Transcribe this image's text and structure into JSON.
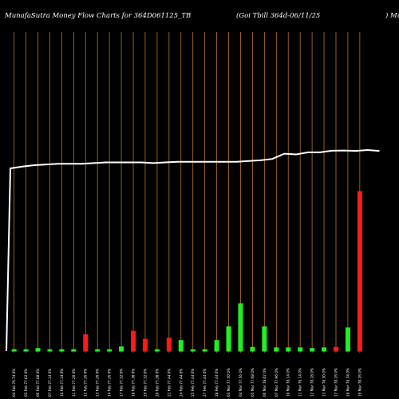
{
  "header": {
    "left": "MunafaSutra  Money Flow  Charts for 364D061125_TB",
    "middle": "(Goi   Tbill 364d-06/11/25",
    "right": ") MunafaSutra.com"
  },
  "colors": {
    "background": "#000000",
    "gridline": "#b8732a",
    "price_line": "#ffffff",
    "up_bar": "#22ee22",
    "down_bar": "#ff1a1a"
  },
  "chart_data": {
    "type": "bar",
    "title": "MunafaSutra  Money Flow  Charts for 364D061125_TB",
    "grid": "vertical",
    "categories": [
      "04 Feb 76.74 0%",
      "05 Feb 77.02 0%",
      "06 Feb 77.08 0%",
      "07 Feb 77.14 0%",
      "10 Feb 77.14 0%",
      "11 Feb 77.20 0%",
      "12 Feb 77.26 0%",
      "13 Feb 77.26 0%",
      "14 Feb 77.26 0%",
      "17 Feb 77.32 0%",
      "18 Feb 77.38 0%",
      "19 Feb 77.32 0%",
      "20 Feb 77.38 0%",
      "21 Feb 77.44 0%",
      "24 Feb 77.44 0%",
      "25 Feb 77.44 0%",
      "27 Feb 77.44 0%",
      "28 Feb 77.44 0%",
      "03 Mar 77.50 0%",
      "04 Mar 77.56 0%",
      "05 Mar 77.68 0%",
      "06 Mar 78.02 0%",
      "07 Mar 77.96 0%",
      "10 Mar 78.14 0%",
      "11 Mar 78.14 0%",
      "12 Mar 78.28 0%",
      "13 Mar 78.30 0%",
      "17 Mar 78.26 0%",
      "18 Mar 78.34 0%",
      "19 Mar 78.26 0%"
    ],
    "price_line": [
      44.0,
      76.74,
      76.9,
      77.02,
      77.08,
      77.14,
      77.14,
      77.14,
      77.2,
      77.26,
      77.26,
      77.26,
      77.26,
      77.2,
      77.26,
      77.32,
      77.32,
      77.32,
      77.32,
      77.32,
      77.32,
      77.38,
      77.44,
      77.56,
      78.02,
      77.96,
      78.14,
      78.14,
      78.28,
      78.3,
      78.26,
      78.34,
      78.26
    ],
    "series": [
      {
        "values": [
          1.0,
          1.0,
          1.5,
          1.0,
          1.0,
          1.0,
          7.5,
          1.0,
          1.0,
          2.2,
          9.0,
          5.5,
          1.0,
          6.0,
          5.0,
          1.0,
          1.0,
          5.0,
          11.0,
          21.0,
          2.0,
          11.0,
          1.8,
          1.8,
          1.8,
          1.5,
          1.8,
          2.0,
          10.5,
          70.0
        ],
        "colors": [
          "g",
          "g",
          "g",
          "g",
          "g",
          "g",
          "r",
          "g",
          "g",
          "g",
          "r",
          "r",
          "g",
          "r",
          "g",
          "g",
          "g",
          "g",
          "g",
          "g",
          "g",
          "g",
          "g",
          "g",
          "g",
          "g",
          "g",
          "r",
          "g",
          "r"
        ]
      }
    ]
  }
}
